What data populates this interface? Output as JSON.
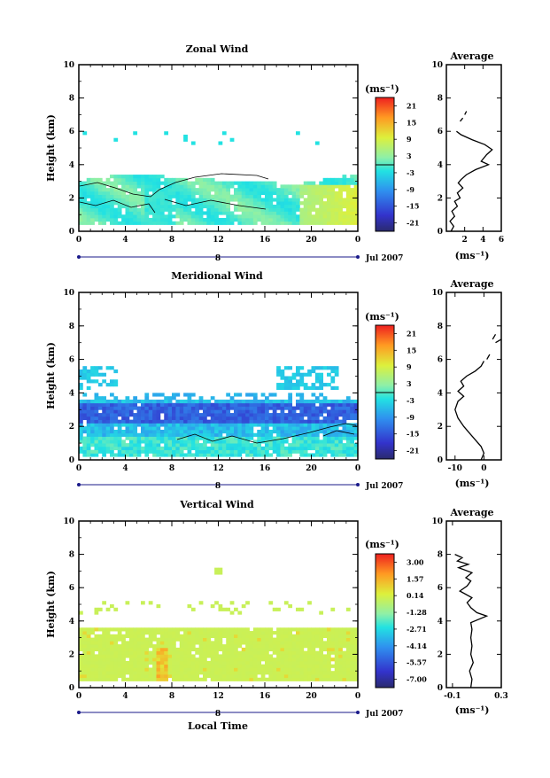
{
  "figure": {
    "xlabel": "Local Time",
    "ylabel": "Height (km)",
    "date_label": "Jul 2007",
    "day_label": "8",
    "unit_label": "(ms⁻¹)",
    "avg_unit_label": "(ms⁻¹)",
    "avg_title": "Average"
  },
  "chart_data": [
    {
      "type": "heatmap",
      "title": "Zonal Wind",
      "xlabel": "",
      "ylabel": "Height (km)",
      "x_ticks": [
        "0",
        "4",
        "8",
        "12",
        "16",
        "20",
        "0"
      ],
      "xlim": [
        0,
        24
      ],
      "y_ticks": [
        "0",
        "2",
        "4",
        "6",
        "8",
        "10"
      ],
      "ylim": [
        0,
        10
      ],
      "colorbar": {
        "labels": [
          "21",
          "15",
          "9",
          "3",
          "-3",
          "-9",
          "-15",
          "-21"
        ],
        "range": [
          -24,
          24
        ]
      },
      "profile": {
        "title": "Average",
        "xlim": [
          0,
          6
        ],
        "x_ticks": [
          "2",
          "4",
          "6"
        ],
        "y_ticks": [
          "0",
          "2",
          "4",
          "6",
          "8",
          "10"
        ],
        "points": [
          [
            0.5,
            0.0
          ],
          [
            0.8,
            0.3
          ],
          [
            0.4,
            0.6
          ],
          [
            0.9,
            0.9
          ],
          [
            0.6,
            1.2
          ],
          [
            1.2,
            1.5
          ],
          [
            0.9,
            1.8
          ],
          [
            1.5,
            2.0
          ],
          [
            1.2,
            2.3
          ],
          [
            1.8,
            2.6
          ],
          [
            1.3,
            2.9
          ],
          [
            1.6,
            3.1
          ],
          [
            2.2,
            3.4
          ],
          [
            3.2,
            3.7
          ],
          [
            4.6,
            4.0
          ],
          [
            3.8,
            4.2
          ],
          [
            4.4,
            4.6
          ],
          [
            5.0,
            4.9
          ],
          [
            4.2,
            5.2
          ],
          [
            2.8,
            5.5
          ],
          [
            1.6,
            5.8
          ],
          [
            1.1,
            6.0
          ]
        ],
        "fragments": [
          [
            [
              1.5,
              6.6
            ],
            [
              1.8,
              6.8
            ]
          ],
          [
            [
              2.0,
              7.0
            ],
            [
              2.2,
              7.2
            ]
          ]
        ]
      }
    },
    {
      "type": "heatmap",
      "title": "Meridional Wind",
      "xlabel": "",
      "ylabel": "Height (km)",
      "x_ticks": [
        "0",
        "4",
        "8",
        "12",
        "16",
        "20",
        "0"
      ],
      "xlim": [
        0,
        24
      ],
      "y_ticks": [
        "0",
        "2",
        "4",
        "6",
        "8",
        "10"
      ],
      "ylim": [
        0,
        10
      ],
      "colorbar": {
        "labels": [
          "21",
          "15",
          "9",
          "3",
          "-3",
          "-9",
          "-15",
          "-21"
        ],
        "range": [
          -24,
          24
        ]
      },
      "profile": {
        "title": "Average",
        "xlim": [
          -13,
          6
        ],
        "x_ticks": [
          "-10",
          "0"
        ],
        "y_ticks": [
          "0",
          "2",
          "4",
          "6",
          "8",
          "10"
        ],
        "points": [
          [
            -1,
            0.0
          ],
          [
            0,
            0.4
          ],
          [
            -1,
            0.8
          ],
          [
            -3,
            1.2
          ],
          [
            -5,
            1.6
          ],
          [
            -7,
            2.0
          ],
          [
            -9,
            2.5
          ],
          [
            -10,
            3.0
          ],
          [
            -9,
            3.5
          ],
          [
            -7,
            3.8
          ],
          [
            -9,
            4.1
          ],
          [
            -7,
            4.4
          ],
          [
            -8,
            4.7
          ],
          [
            -6,
            5.0
          ],
          [
            -3,
            5.3
          ],
          [
            -1,
            5.6
          ],
          [
            0,
            5.9
          ]
        ],
        "fragments": [
          [
            [
              1,
              6.0
            ],
            [
              2,
              6.3
            ]
          ],
          [
            [
              4,
              7.0
            ],
            [
              6,
              7.2
            ]
          ],
          [
            [
              3,
              7.2
            ],
            [
              4,
              7.5
            ]
          ]
        ]
      }
    },
    {
      "type": "heatmap",
      "title": "Vertical Wind",
      "xlabel": "Local Time",
      "ylabel": "Height (km)",
      "x_ticks": [
        "0",
        "4",
        "8",
        "12",
        "16",
        "20",
        "0"
      ],
      "xlim": [
        0,
        24
      ],
      "y_ticks": [
        "0",
        "2",
        "4",
        "6",
        "8",
        "10"
      ],
      "ylim": [
        0,
        10
      ],
      "colorbar": {
        "labels": [
          "3.00",
          "1.57",
          "0.14",
          "-1.28",
          "-2.71",
          "-4.14",
          "-5.57",
          "-7.00"
        ],
        "range": [
          -7.7,
          3.7
        ]
      },
      "profile": {
        "title": "Average",
        "xlim": [
          -0.15,
          0.3
        ],
        "x_ticks": [
          "-0.1",
          "0.3"
        ],
        "y_ticks": [
          "0",
          "2",
          "4",
          "6",
          "8",
          "10"
        ],
        "points": [
          [
            0.05,
            0.0
          ],
          [
            0.06,
            0.5
          ],
          [
            0.04,
            1.0
          ],
          [
            0.07,
            1.5
          ],
          [
            0.05,
            2.0
          ],
          [
            0.06,
            2.5
          ],
          [
            0.05,
            3.0
          ],
          [
            0.06,
            3.5
          ],
          [
            0.05,
            3.9
          ],
          [
            0.18,
            4.3
          ],
          [
            0.1,
            4.5
          ],
          [
            0.05,
            4.8
          ],
          [
            0.02,
            5.1
          ],
          [
            0.06,
            5.4
          ],
          [
            -0.04,
            5.8
          ],
          [
            0.02,
            6.1
          ],
          [
            0.05,
            6.4
          ],
          [
            0.01,
            6.6
          ],
          [
            0.06,
            6.9
          ],
          [
            -0.05,
            7.2
          ],
          [
            0.03,
            7.4
          ],
          [
            -0.06,
            7.6
          ],
          [
            -0.02,
            7.8
          ],
          [
            -0.08,
            8.0
          ]
        ],
        "fragments": []
      }
    }
  ]
}
